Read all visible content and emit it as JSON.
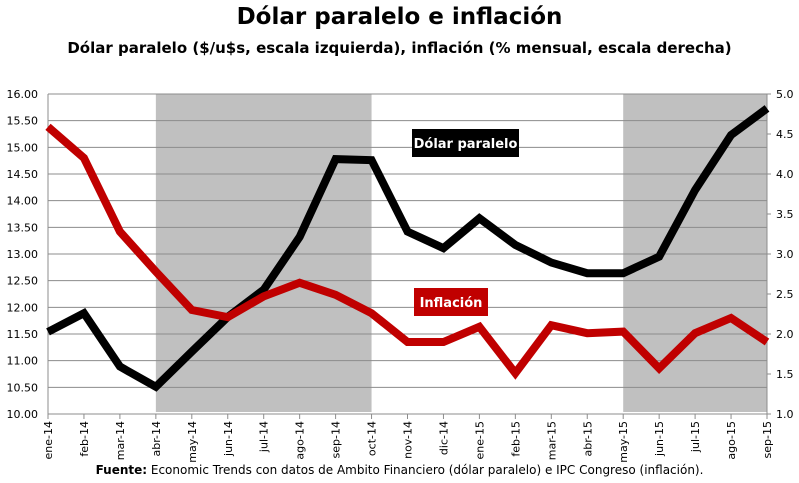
{
  "chart_data": {
    "type": "line",
    "title": "Dólar paralelo e inflación",
    "subtitle": "Dólar paralelo ($/u$s, escala izquierda), inflación (% mensual, escala derecha)",
    "source_label": "Fuente:",
    "source_text": " Economic Trends con datos de Ambito Financiero (dólar paralelo) e IPC Congreso (inflación).",
    "categories": [
      "ene-14",
      "feb-14",
      "mar-14",
      "abr-14",
      "may-14",
      "jun-14",
      "jul-14",
      "ago-14",
      "sep-14",
      "oct-14",
      "nov-14",
      "dic-14",
      "ene-15",
      "feb-15",
      "mar-15",
      "abr-15",
      "may-15",
      "jun-15",
      "jul-15",
      "ago-15",
      "sep-15"
    ],
    "y_left": {
      "range": [
        10,
        16
      ],
      "ticks": [
        "10.00",
        "10.50",
        "11.00",
        "11.50",
        "12.00",
        "12.50",
        "13.00",
        "13.50",
        "14.00",
        "14.50",
        "15.00",
        "15.50",
        "16.00"
      ]
    },
    "y_right": {
      "range": [
        1,
        5
      ],
      "ticks": [
        "1.0",
        "1.5",
        "2.0",
        "2.5",
        "3.0",
        "3.5",
        "4.0",
        "4.5",
        "5.0"
      ]
    },
    "grid": true,
    "shaded_periods": [
      [
        "abr-14",
        "oct-14"
      ],
      [
        "may-15",
        "sep-15"
      ]
    ],
    "shade_color": "#c0c0c0",
    "series": [
      {
        "name": "Dólar paralelo",
        "axis": "left",
        "color": "#000000",
        "values": [
          11.54,
          11.89,
          10.89,
          10.51,
          11.17,
          11.82,
          12.33,
          13.32,
          14.78,
          14.76,
          13.42,
          13.11,
          13.67,
          13.17,
          12.84,
          12.64,
          12.64,
          12.95,
          14.2,
          15.23,
          15.73
        ]
      },
      {
        "name": "Inflación",
        "axis": "right",
        "color": "#c00000",
        "values": [
          4.59,
          4.2,
          3.28,
          2.78,
          2.3,
          2.21,
          2.47,
          2.64,
          2.49,
          2.26,
          1.9,
          1.9,
          2.09,
          1.51,
          2.11,
          2.01,
          2.03,
          1.57,
          2.01,
          2.2,
          1.9
        ]
      }
    ]
  }
}
